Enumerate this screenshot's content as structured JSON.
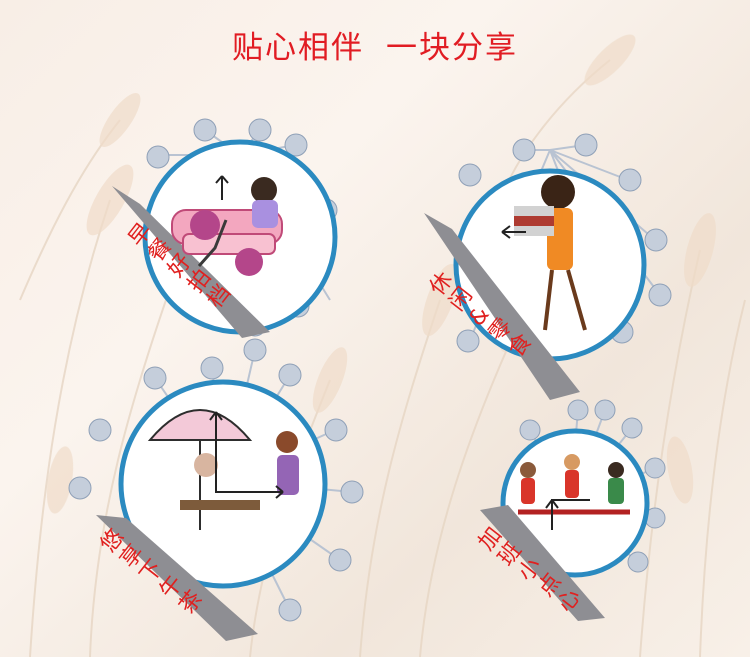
{
  "title": {
    "left": "贴心相伴",
    "right": "一块分享"
  },
  "colors": {
    "title_red": "#e11c23",
    "label_red": "#e0201f",
    "ring_blue": "#2b8ac0",
    "bubble": "#c5cedb",
    "band_gray": "#8e8e93"
  },
  "cards": [
    {
      "id": "breakfast",
      "label": [
        "早",
        "餐",
        "好",
        "拍",
        "档"
      ],
      "icon": "woman-on-sofa-illustration"
    },
    {
      "id": "snacks",
      "label": [
        "休",
        "闲",
        "&",
        "零",
        "食"
      ],
      "icon": "woman-carrying-books-illustration"
    },
    {
      "id": "afternoon-tea",
      "label": [
        "悠",
        "享",
        "下",
        "午",
        "茶"
      ],
      "icon": "cafe-umbrella-illustration"
    },
    {
      "id": "overtime-snack",
      "label": [
        "加",
        "班",
        "小",
        "点",
        "心"
      ],
      "icon": "women-chatting-illustration"
    }
  ]
}
